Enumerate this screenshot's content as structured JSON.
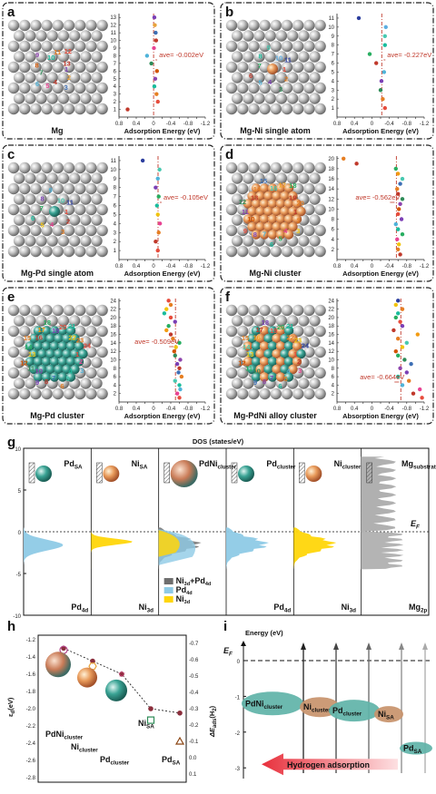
{
  "panels_top": [
    {
      "letter": "a",
      "system": "Mg",
      "ave": "ave= -0.002eV",
      "ave_value": -0.002,
      "y_max": 13,
      "xlabel": "Adsorption Energy (eV)",
      "x_ticks": [
        "0.8",
        "0.6",
        "0.4",
        "0.2",
        "0",
        "-0.2",
        "-0.4",
        "-0.6",
        "-0.8",
        "-1.0",
        "-1.2"
      ],
      "points": [
        [
          -0.02,
          13
        ],
        [
          -0.03,
          12
        ],
        [
          -0.05,
          11
        ],
        [
          -0.06,
          10
        ],
        [
          -0.01,
          9
        ],
        [
          0.15,
          8
        ],
        [
          0.05,
          7
        ],
        [
          -0.08,
          6
        ],
        [
          -0.04,
          5
        ],
        [
          -0.02,
          4
        ],
        [
          -0.07,
          3
        ],
        [
          -0.1,
          2
        ],
        [
          0.6,
          1
        ]
      ],
      "colors": [
        "#7b3fb5",
        "#e8a23b",
        "#3d6fb5",
        "#c0392b",
        "#e84393",
        "#4fb3d9",
        "#2e8b57",
        "#d35400",
        "#8e44ad",
        "#1abc9c",
        "#e67e22",
        "#e74c3c",
        "#c0392b"
      ],
      "numbers": [
        "1",
        "2",
        "3",
        "4",
        "5",
        "6",
        "7",
        "8",
        "9",
        "10",
        "11",
        "12",
        "13"
      ]
    },
    {
      "letter": "b",
      "system": "Mg-Ni single atom",
      "ave": "ave= -0.227eV",
      "ave_value": -0.227,
      "y_max": 11,
      "xlabel": "Adsorption Energy (eV)",
      "x_ticks": [
        "0.8",
        "0.6",
        "0.4",
        "0.2",
        "0",
        "-0.2",
        "-0.4",
        "-0.6",
        "-0.8",
        "-1.0",
        "-1.2"
      ],
      "points": [
        [
          -0.3,
          1
        ],
        [
          -0.25,
          2
        ],
        [
          -0.2,
          3
        ],
        [
          -0.22,
          4
        ],
        [
          -0.28,
          5
        ],
        [
          -0.1,
          6
        ],
        [
          0.05,
          7
        ],
        [
          -0.3,
          8
        ],
        [
          -0.3,
          9
        ],
        [
          -0.32,
          10
        ],
        [
          0.3,
          11
        ]
      ],
      "colors": [
        "#e74c3c",
        "#e67e22",
        "#2e8b57",
        "#7b3fb5",
        "#4fb3d9",
        "#c0392b",
        "#27ae60",
        "#1abc9c",
        "#48c9b0",
        "#5dade2",
        "#2c3e9e"
      ],
      "numbers": [
        "1",
        "2",
        "3",
        "4",
        "5",
        "6",
        "7",
        "8",
        "9",
        "10",
        "11"
      ]
    },
    {
      "letter": "c",
      "system": "Mg-Pd single atom",
      "ave": "ave= -0.105eV",
      "ave_value": -0.105,
      "y_max": 11,
      "xlabel": "Adsorption Energy (eV)",
      "x_ticks": [
        "0.8",
        "0.6",
        "0.4",
        "0.2",
        "0",
        "-0.2",
        "-0.4",
        "-0.6",
        "-0.8",
        "-1.0",
        "-1.2"
      ],
      "points": [
        [
          -0.1,
          1
        ],
        [
          -0.05,
          2
        ],
        [
          -0.12,
          3
        ],
        [
          -0.15,
          4
        ],
        [
          -0.1,
          5
        ],
        [
          -0.08,
          6
        ],
        [
          -0.12,
          7
        ],
        [
          -0.05,
          8
        ],
        [
          -0.1,
          9
        ],
        [
          -0.14,
          10
        ],
        [
          0.25,
          11
        ]
      ],
      "colors": [
        "#e74c3c",
        "#c0392b",
        "#e67e22",
        "#e84393",
        "#f1c40f",
        "#1abc9c",
        "#27ae60",
        "#7b3fb5",
        "#4fb3d9",
        "#48c9b0",
        "#2c3e9e"
      ],
      "numbers": [
        "1",
        "2",
        "3",
        "4",
        "5",
        "6",
        "7",
        "8",
        "9",
        "10",
        "11"
      ]
    },
    {
      "letter": "d",
      "system": "Mg-Ni cluster",
      "ave": "ave= -0.562eV",
      "ave_value": -0.562,
      "y_max": 20,
      "xlabel": "Adsorption Energy (eV)",
      "x_ticks": [
        "0.8",
        "0.6",
        "0.4",
        "0.2",
        "0",
        "-0.2",
        "-0.4",
        "-0.6",
        "-0.8",
        "-1.0",
        "-1.2"
      ],
      "points": [
        [
          -0.65,
          1
        ],
        [
          -0.6,
          2
        ],
        [
          -0.62,
          3
        ],
        [
          -0.58,
          4
        ],
        [
          -0.7,
          5
        ],
        [
          -0.6,
          6
        ],
        [
          -0.55,
          7
        ],
        [
          -0.68,
          8
        ],
        [
          -0.6,
          9
        ],
        [
          -0.62,
          10
        ],
        [
          -0.65,
          11
        ],
        [
          -0.7,
          12
        ],
        [
          -0.6,
          13
        ],
        [
          -0.58,
          14
        ],
        [
          -0.65,
          15
        ],
        [
          -0.7,
          16
        ],
        [
          -0.6,
          17
        ],
        [
          -0.55,
          18
        ],
        [
          0.35,
          19
        ],
        [
          0.65,
          20
        ]
      ],
      "colors": [
        "#c0392b",
        "#e67e22",
        "#f1c40f",
        "#e84393",
        "#27ae60",
        "#1abc9c",
        "#4fb3d9",
        "#7b3fb5",
        "#e74c3c",
        "#d35400",
        "#8e44ad",
        "#2e8b57",
        "#c0392b",
        "#e67e22",
        "#3d6fb5",
        "#48c9b0",
        "#f39c12",
        "#27ae60",
        "#c0392b",
        "#e67e22"
      ],
      "numbers": [
        "1",
        "2",
        "3",
        "4",
        "5",
        "6",
        "7",
        "8",
        "9",
        "10",
        "11",
        "12",
        "13",
        "14",
        "15",
        "16",
        "17",
        "18",
        "19",
        "20"
      ]
    },
    {
      "letter": "e",
      "system": "Mg-Pd cluster",
      "ave": "ave= -0.509eV",
      "ave_value": -0.509,
      "y_max": 24,
      "xlabel": "Adsorption Energy (eV)",
      "x_ticks": [
        "0.8",
        "0.6",
        "0.4",
        "0.2",
        "0",
        "-0.2",
        "-0.4",
        "-0.6",
        "-0.8",
        "-1.0",
        "-1.2"
      ],
      "points": [
        [
          -0.6,
          1
        ],
        [
          -0.55,
          2
        ],
        [
          -0.62,
          3
        ],
        [
          -0.6,
          4
        ],
        [
          -0.5,
          5
        ],
        [
          -0.65,
          6
        ],
        [
          -0.58,
          7
        ],
        [
          -0.6,
          8
        ],
        [
          -0.55,
          9
        ],
        [
          -0.62,
          10
        ],
        [
          -0.5,
          11
        ],
        [
          -0.48,
          12
        ],
        [
          -0.52,
          13
        ],
        [
          -0.6,
          14
        ],
        [
          -0.45,
          15
        ],
        [
          -0.4,
          16
        ],
        [
          -0.3,
          17
        ],
        [
          -0.35,
          18
        ],
        [
          -0.5,
          19
        ],
        [
          -0.4,
          20
        ],
        [
          -0.25,
          21
        ],
        [
          -0.3,
          22
        ],
        [
          -0.4,
          23
        ],
        [
          -0.35,
          24
        ]
      ],
      "colors": [
        "#e74c3c",
        "#e84393",
        "#4fb3d9",
        "#1abc9c",
        "#48c9b0",
        "#e67e22",
        "#3d6fb5",
        "#c0392b",
        "#7b3fb5",
        "#8e44ad",
        "#2e8b57",
        "#d35400",
        "#f1c40f",
        "#27ae60",
        "#e67e22",
        "#c0392b",
        "#f39c12",
        "#27ae60",
        "#7b3fb5",
        "#e74c3c",
        "#1abc9c",
        "#f1c40f",
        "#e67e22",
        "#e74c3c"
      ],
      "numbers": [
        "1",
        "2",
        "3",
        "4",
        "5",
        "6",
        "7",
        "8",
        "9",
        "10",
        "11",
        "12",
        "13",
        "14",
        "15",
        "16",
        "17",
        "18",
        "19",
        "20",
        "21",
        "22",
        "23",
        "24"
      ]
    },
    {
      "letter": "f",
      "system": "Mg-PdNi alloy cluster",
      "ave": "ave= -0.664eV",
      "ave_value": -0.664,
      "y_max": 24,
      "xlabel": "Absorption Energy (eV)",
      "x_ticks": [
        "0.8",
        "0.6",
        "0.4",
        "0.2",
        "0",
        "-0.2",
        "-0.4",
        "-0.6",
        "-0.8",
        "-1.0",
        "-1.2"
      ],
      "points": [
        [
          -1.15,
          1
        ],
        [
          -0.95,
          2
        ],
        [
          -1.1,
          3
        ],
        [
          -0.7,
          4
        ],
        [
          -0.85,
          5
        ],
        [
          -0.6,
          6
        ],
        [
          -0.8,
          7
        ],
        [
          -0.65,
          8
        ],
        [
          -0.9,
          9
        ],
        [
          -0.75,
          10
        ],
        [
          -0.6,
          11
        ],
        [
          -0.55,
          12
        ],
        [
          -0.7,
          13
        ],
        [
          -0.8,
          14
        ],
        [
          -0.6,
          15
        ],
        [
          -1.05,
          16
        ],
        [
          -0.5,
          17
        ],
        [
          -0.7,
          18
        ],
        [
          -0.65,
          19
        ],
        [
          -0.55,
          20
        ],
        [
          -0.6,
          21
        ],
        [
          -0.7,
          22
        ],
        [
          -0.55,
          23
        ],
        [
          -0.6,
          24
        ]
      ],
      "colors": [
        "#e74c3c",
        "#c0392b",
        "#e84393",
        "#4fb3d9",
        "#e67e22",
        "#1abc9c",
        "#7b3fb5",
        "#8e44ad",
        "#3d6fb5",
        "#2e8b57",
        "#27ae60",
        "#d35400",
        "#f1c40f",
        "#48c9b0",
        "#e67e22",
        "#f39c12",
        "#c0392b",
        "#7b3fb5",
        "#e74c3c",
        "#27ae60",
        "#1abc9c",
        "#e67e22",
        "#f1c40f",
        "#2c3e9e"
      ],
      "numbers": [
        "1",
        "2",
        "3",
        "4",
        "5",
        "6",
        "7",
        "8",
        "9",
        "10",
        "11",
        "12",
        "13",
        "14",
        "15",
        "16",
        "17",
        "18",
        "19",
        "20",
        "21",
        "22",
        "23",
        "24"
      ]
    }
  ],
  "panel_g": {
    "letter": "g",
    "title": "DOS (states/eV)",
    "y_ticks": [
      "10",
      "5",
      "0",
      "-5",
      "-10"
    ],
    "ef_label": "E",
    "ef_sub": "F",
    "columns": [
      {
        "name": "Pd",
        "sub": "SA",
        "orbital": "Pd",
        "orb_sub": "4d",
        "color": "#8ecae6"
      },
      {
        "name": "Ni",
        "sub": "SA",
        "orbital": "Ni",
        "orb_sub": "3d",
        "color": "#ffd60a"
      },
      {
        "name": "PdNi",
        "sub": "cluster",
        "orbital": "",
        "orb_sub": "",
        "color": "#808080"
      },
      {
        "name": "Pd",
        "sub": "cluster",
        "orbital": "Pd",
        "orb_sub": "4d",
        "color": "#8ecae6"
      },
      {
        "name": "Ni",
        "sub": "cluster",
        "orbital": "Ni",
        "orb_sub": "3d",
        "color": "#ffd60a"
      },
      {
        "name": "Mg",
        "sub": "substrate",
        "orbital": "Mg",
        "orb_sub": "2p",
        "color": "#b0b0b0"
      }
    ],
    "legend": [
      {
        "label": "Ni",
        "sub1": "3d",
        "mid": "+Pd",
        "sub2": "4d",
        "color": "#6e6e6e"
      },
      {
        "label": "Pd",
        "sub1": "4d",
        "mid": "",
        "sub2": "",
        "color": "#8ecae6"
      },
      {
        "label": "Ni",
        "sub1": "3d",
        "mid": "",
        "sub2": "",
        "color": "#ffd60a"
      }
    ]
  },
  "panel_h": {
    "letter": "h",
    "yl_label": "ε",
    "yl_sub": "d",
    "yl_unit": "(eV)",
    "yr_label": "ΔE",
    "yr_sub": "ads",
    "yr_unit": "(H",
    "yr_sub2": "2",
    "yr_close": ")",
    "yl_ticks": [
      "-1.2",
      "-1.4",
      "-1.6",
      "-1.8",
      "-2.0",
      "-2.2",
      "-2.4",
      "-2.6",
      "-2.8"
    ],
    "yr_ticks": [
      "-0.7",
      "-0.6",
      "-0.5",
      "-0.4",
      "-0.3",
      "-0.2",
      "-0.1",
      "0.0",
      "0.1"
    ],
    "labels": [
      {
        "name": "PdNi",
        "sub": "cluster"
      },
      {
        "name": "Ni",
        "sub": "cluster"
      },
      {
        "name": "Pd",
        "sub": "cluster"
      },
      {
        "name": "Ni",
        "sub": "SA"
      },
      {
        "name": "Pd",
        "sub": "SA"
      }
    ],
    "ed": [
      -1.3,
      -1.45,
      -1.6,
      -2.0,
      -2.05
    ],
    "dE": [
      -0.66,
      -0.56,
      -0.51,
      -0.23,
      -0.1
    ]
  },
  "panel_i": {
    "letter": "i",
    "ylabel": "Energy (eV)",
    "ef_label": "E",
    "ef_sub": "F",
    "y_ticks": [
      "0",
      "-1",
      "-2",
      "-3"
    ],
    "bands": [
      {
        "name": "PdNi",
        "sub": "cluster",
        "color": "#5fb3a8"
      },
      {
        "name": "Ni",
        "sub": "cluster",
        "color": "#c8936b"
      },
      {
        "name": "Pd",
        "sub": "cluster",
        "color": "#5fb3a8"
      },
      {
        "name": "Ni",
        "sub": "SA",
        "color": "#c8936b"
      },
      {
        "name": "Pd",
        "sub": "SA",
        "color": "#5fb3a8"
      }
    ],
    "arrow_label": "Hydrogen adsorption"
  }
}
